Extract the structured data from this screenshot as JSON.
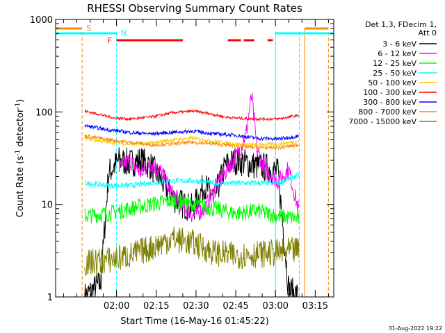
{
  "chart_data": {
    "type": "line",
    "title": "RHESSI Observing Summary Count Rates",
    "xlabel": "Start Time (16-May-16 01:45:22)",
    "ylabel": "Count Rate (s",
    "ylabel_sup": "-1",
    "ylabel_mid": " detector",
    "ylabel_end": ")",
    "y_scale": "log",
    "ylim": [
      1,
      1000
    ],
    "xlim_minutes": [
      -8,
      97
    ],
    "x_ticks": [
      {
        "label": "02:00",
        "min": 15
      },
      {
        "label": "02:15",
        "min": 30
      },
      {
        "label": "02:30",
        "min": 45
      },
      {
        "label": "02:45",
        "min": 60
      },
      {
        "label": "03:00",
        "min": 75
      },
      {
        "label": "03:15",
        "min": 90
      }
    ],
    "y_ticks": [
      {
        "label": "1",
        "value": 1
      },
      {
        "label": "10",
        "value": 10
      },
      {
        "label": "100",
        "value": 100
      },
      {
        "label": "1000",
        "value": 1000
      }
    ],
    "data_range_minutes": [
      3,
      84
    ],
    "legend_header": [
      "Det 1,3, FDecim 1,",
      "Att 0"
    ],
    "legend_placement": "right",
    "series": [
      {
        "name": "3 - 6 keV",
        "color": "#000000",
        "points": [
          [
            3,
            1
          ],
          [
            9,
            1.4
          ],
          [
            12,
            22
          ],
          [
            16,
            30
          ],
          [
            20,
            28
          ],
          [
            24,
            30
          ],
          [
            28,
            26
          ],
          [
            32,
            18
          ],
          [
            36,
            12
          ],
          [
            40,
            10
          ],
          [
            44,
            9
          ],
          [
            48,
            16
          ],
          [
            52,
            12
          ],
          [
            56,
            26
          ],
          [
            60,
            30
          ],
          [
            64,
            28
          ],
          [
            68,
            26
          ],
          [
            72,
            25
          ],
          [
            76,
            22
          ],
          [
            80,
            1.2
          ],
          [
            84,
            1
          ]
        ]
      },
      {
        "name": "6 - 12 keV",
        "color": "#ff00ff",
        "points": [
          [
            16,
            25
          ],
          [
            20,
            30
          ],
          [
            24,
            22
          ],
          [
            28,
            28
          ],
          [
            32,
            22
          ],
          [
            36,
            13
          ],
          [
            40,
            10
          ],
          [
            44,
            7.5
          ],
          [
            48,
            9
          ],
          [
            52,
            14
          ],
          [
            56,
            22
          ],
          [
            58,
            28
          ],
          [
            60,
            32
          ],
          [
            62,
            42
          ],
          [
            64,
            60
          ],
          [
            66,
            150
          ],
          [
            68,
            40
          ],
          [
            70,
            28
          ],
          [
            72,
            22
          ],
          [
            74,
            20
          ],
          [
            76,
            18
          ],
          [
            80,
            24
          ],
          [
            84,
            8
          ]
        ]
      },
      {
        "name": "12 - 25 keV",
        "color": "#00ff00",
        "points": [
          [
            3,
            7.5
          ],
          [
            12,
            8
          ],
          [
            20,
            9
          ],
          [
            28,
            10
          ],
          [
            36,
            11
          ],
          [
            44,
            10
          ],
          [
            52,
            9
          ],
          [
            60,
            8
          ],
          [
            68,
            8.5
          ],
          [
            76,
            7.5
          ],
          [
            84,
            7
          ]
        ]
      },
      {
        "name": "25 - 50 keV",
        "color": "#00ffff",
        "points": [
          [
            3,
            17
          ],
          [
            12,
            16
          ],
          [
            20,
            16
          ],
          [
            28,
            17
          ],
          [
            36,
            18
          ],
          [
            44,
            18
          ],
          [
            52,
            17
          ],
          [
            60,
            17
          ],
          [
            68,
            17
          ],
          [
            76,
            17
          ],
          [
            84,
            21
          ]
        ]
      },
      {
        "name": "50 - 100 keV",
        "color": "#ffcc00",
        "points": [
          [
            3,
            52
          ],
          [
            12,
            47
          ],
          [
            20,
            45
          ],
          [
            28,
            46
          ],
          [
            36,
            50
          ],
          [
            44,
            52
          ],
          [
            52,
            48
          ],
          [
            60,
            45
          ],
          [
            68,
            44
          ],
          [
            76,
            45
          ],
          [
            84,
            48
          ]
        ]
      },
      {
        "name": "100 - 300 keV",
        "color": "#ff0000",
        "points": [
          [
            3,
            102
          ],
          [
            8,
            95
          ],
          [
            14,
            86
          ],
          [
            20,
            84
          ],
          [
            28,
            88
          ],
          [
            36,
            98
          ],
          [
            44,
            102
          ],
          [
            50,
            96
          ],
          [
            56,
            88
          ],
          [
            62,
            85
          ],
          [
            68,
            84
          ],
          [
            76,
            84
          ],
          [
            84,
            92
          ]
        ]
      },
      {
        "name": "300 - 800 keV",
        "color": "#0000ff",
        "points": [
          [
            3,
            71
          ],
          [
            12,
            64
          ],
          [
            20,
            60
          ],
          [
            28,
            58
          ],
          [
            36,
            60
          ],
          [
            44,
            62
          ],
          [
            52,
            58
          ],
          [
            60,
            56
          ],
          [
            68,
            52
          ],
          [
            76,
            51
          ],
          [
            84,
            55
          ]
        ]
      },
      {
        "name": "800 - 7000 keV",
        "color": "#ff8800",
        "points": [
          [
            3,
            55
          ],
          [
            12,
            50
          ],
          [
            20,
            47
          ],
          [
            28,
            44
          ],
          [
            36,
            45
          ],
          [
            44,
            47
          ],
          [
            52,
            45
          ],
          [
            60,
            43
          ],
          [
            68,
            41
          ],
          [
            76,
            41
          ],
          [
            84,
            44
          ]
        ]
      },
      {
        "name": "7000 - 15000 keV",
        "color": "#808000",
        "points": [
          [
            3,
            2.3
          ],
          [
            12,
            2.5
          ],
          [
            20,
            2.8
          ],
          [
            28,
            3.4
          ],
          [
            36,
            4.3
          ],
          [
            44,
            3.8
          ],
          [
            52,
            3.0
          ],
          [
            60,
            2.8
          ],
          [
            68,
            2.9
          ],
          [
            76,
            3.0
          ],
          [
            84,
            3.2
          ]
        ]
      }
    ],
    "markers": {
      "cyan_vertical_minutes": [
        -8,
        15,
        75,
        84
      ],
      "orange_dashed_minutes": [
        2,
        95
      ],
      "saa_label": "S",
      "night_label": "N",
      "flare_label": "F",
      "saa_color": "#ff8800",
      "night_color": "#00ffff",
      "flare_color": "#ff0000",
      "saa_bars_minutes": [
        [
          -8,
          2
        ],
        [
          86,
          95
        ]
      ],
      "night_bars_minutes": [
        [
          -8,
          15
        ],
        [
          75,
          97
        ]
      ],
      "flare_bars_minutes": [
        [
          15,
          40
        ],
        [
          57,
          62
        ],
        [
          63,
          67
        ],
        [
          72,
          74
        ]
      ],
      "solid_orange_vertical_minutes": [
        86
      ]
    },
    "grid": false
  },
  "timestamp": "31-Aug-2022 19:22"
}
